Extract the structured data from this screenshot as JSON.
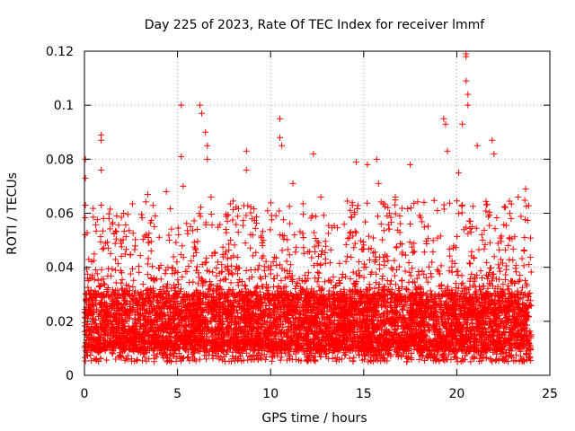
{
  "chart_data": {
    "type": "scatter",
    "title": "Day 225 of 2023, Rate Of TEC Index for receiver lmmf",
    "xlabel": "GPS time / hours",
    "ylabel": "ROTI / TECUs",
    "xlim": [
      0,
      25
    ],
    "ylim": [
      0,
      0.12
    ],
    "x_ticks": [
      "0",
      "5",
      "10",
      "15",
      "20",
      "25"
    ],
    "y_ticks": [
      "0",
      "0.02",
      "0.04",
      "0.06",
      "0.08",
      "0.1",
      "0.12"
    ],
    "x_tick_values": [
      0,
      5,
      10,
      15,
      20,
      25
    ],
    "y_tick_values": [
      0,
      0.02,
      0.04,
      0.06,
      0.08,
      0.1,
      0.12
    ],
    "grid": true,
    "marker": "plus",
    "series": [
      {
        "color": "#ff0000",
        "x_range": [
          0,
          24
        ],
        "dense_band": [
          0.005,
          0.03
        ],
        "outliers": [
          {
            "x": 0.05,
            "y": 0.08
          },
          {
            "x": 0.05,
            "y": 0.073
          },
          {
            "x": 0.05,
            "y": 0.063
          },
          {
            "x": 0.9,
            "y": 0.089
          },
          {
            "x": 0.9,
            "y": 0.087
          },
          {
            "x": 0.9,
            "y": 0.076
          },
          {
            "x": 0.9,
            "y": 0.063
          },
          {
            "x": 2.1,
            "y": 0.06
          },
          {
            "x": 3.4,
            "y": 0.067
          },
          {
            "x": 4.4,
            "y": 0.068
          },
          {
            "x": 5.2,
            "y": 0.1
          },
          {
            "x": 5.2,
            "y": 0.081
          },
          {
            "x": 5.3,
            "y": 0.07
          },
          {
            "x": 6.2,
            "y": 0.1
          },
          {
            "x": 6.3,
            "y": 0.097
          },
          {
            "x": 6.5,
            "y": 0.09
          },
          {
            "x": 6.6,
            "y": 0.085
          },
          {
            "x": 6.6,
            "y": 0.08
          },
          {
            "x": 6.8,
            "y": 0.066
          },
          {
            "x": 8.7,
            "y": 0.083
          },
          {
            "x": 8.7,
            "y": 0.076
          },
          {
            "x": 10.5,
            "y": 0.095
          },
          {
            "x": 10.5,
            "y": 0.088
          },
          {
            "x": 10.6,
            "y": 0.085
          },
          {
            "x": 11.2,
            "y": 0.071
          },
          {
            "x": 12.3,
            "y": 0.082
          },
          {
            "x": 12.7,
            "y": 0.066
          },
          {
            "x": 14.6,
            "y": 0.079
          },
          {
            "x": 15.2,
            "y": 0.078
          },
          {
            "x": 15.7,
            "y": 0.08
          },
          {
            "x": 15.8,
            "y": 0.071
          },
          {
            "x": 16.7,
            "y": 0.066
          },
          {
            "x": 17.5,
            "y": 0.078
          },
          {
            "x": 19.3,
            "y": 0.095
          },
          {
            "x": 19.4,
            "y": 0.093
          },
          {
            "x": 19.5,
            "y": 0.083
          },
          {
            "x": 20.1,
            "y": 0.075
          },
          {
            "x": 20.3,
            "y": 0.093
          },
          {
            "x": 20.5,
            "y": 0.119
          },
          {
            "x": 20.5,
            "y": 0.118
          },
          {
            "x": 20.5,
            "y": 0.109
          },
          {
            "x": 20.6,
            "y": 0.104
          },
          {
            "x": 20.6,
            "y": 0.1
          },
          {
            "x": 21.1,
            "y": 0.085
          },
          {
            "x": 21.9,
            "y": 0.087
          },
          {
            "x": 22.0,
            "y": 0.082
          },
          {
            "x": 23.3,
            "y": 0.066
          },
          {
            "x": 23.7,
            "y": 0.069
          }
        ]
      }
    ]
  }
}
